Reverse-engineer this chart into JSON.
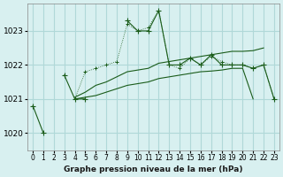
{
  "title": "Graphe pression niveau de la mer (hPa)",
  "bg_color": "#d8f0f0",
  "grid_color": "#b0d8d8",
  "line_color": "#1a5c1a",
  "x_labels": [
    "0",
    "1",
    "2",
    "3",
    "4",
    "5",
    "6",
    "7",
    "8",
    "9",
    "10",
    "11",
    "12",
    "13",
    "14",
    "15",
    "16",
    "17",
    "18",
    "19",
    "20",
    "21",
    "22",
    "23"
  ],
  "ylim": [
    1019.5,
    1023.8
  ],
  "yticks": [
    1020,
    1021,
    1022,
    1023
  ],
  "series_main": [
    1020.8,
    1020.0,
    null,
    1021.7,
    1021.0,
    1021.0,
    null,
    null,
    null,
    1023.3,
    1023.0,
    1023.0,
    1023.6,
    1022.0,
    1022.0,
    1022.2,
    1022.0,
    1022.3,
    1022.0,
    1022.0,
    1022.0,
    1021.9,
    1022.0,
    1021.0
  ],
  "series_dotted": [
    null,
    null,
    null,
    null,
    1021.0,
    1021.8,
    1021.9,
    1022.0,
    1022.1,
    1023.2,
    1023.0,
    1023.1,
    1023.6,
    1022.0,
    1021.9,
    1022.2,
    1022.0,
    1022.25,
    1022.1,
    1022.0,
    1022.0,
    1021.9,
    1022.0,
    1021.0
  ],
  "series_upper": [
    null,
    null,
    null,
    null,
    1021.05,
    1021.2,
    1021.4,
    1021.5,
    1021.65,
    1021.8,
    1021.85,
    1021.9,
    1022.05,
    1022.1,
    1022.15,
    1022.2,
    1022.25,
    1022.3,
    1022.35,
    1022.4,
    1022.4,
    1022.42,
    1022.5,
    null
  ],
  "series_lower": [
    null,
    null,
    null,
    null,
    1021.0,
    1021.05,
    1021.1,
    1021.2,
    1021.3,
    1021.4,
    1021.45,
    1021.5,
    1021.6,
    1021.65,
    1021.7,
    1021.75,
    1021.8,
    1021.82,
    1021.85,
    1021.9,
    1021.9,
    1021.0,
    null,
    null
  ]
}
